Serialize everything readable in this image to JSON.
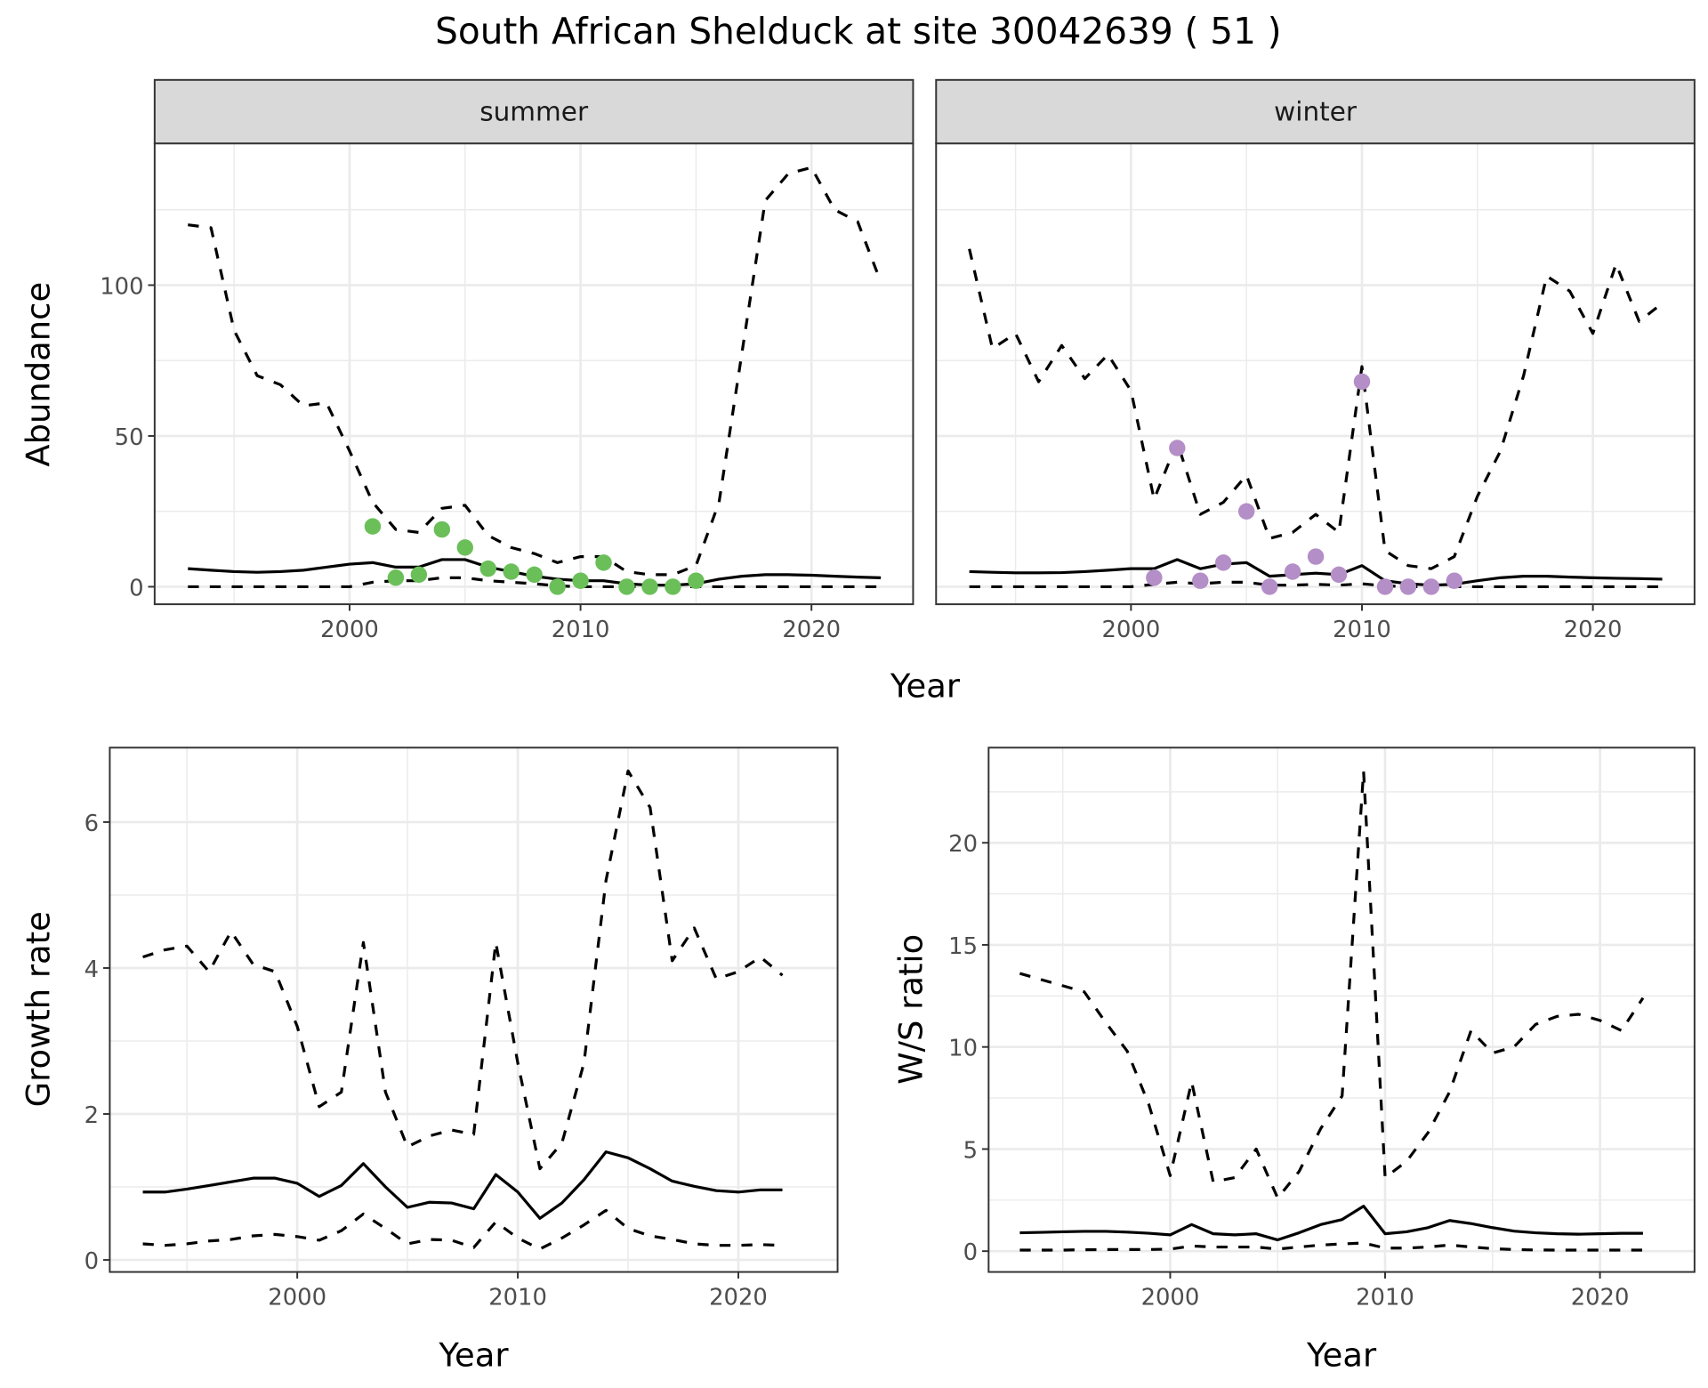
{
  "title": "South African Shelduck at site 30042639 ( 51 )",
  "colors": {
    "summer_points": "#6bbf59",
    "winter_points": "#b48ec7",
    "lines": "#000000",
    "grid": "#ebebeb",
    "strip_bg": "#d9d9d9"
  },
  "chart_data": [
    {
      "type": "line",
      "panel": "summer",
      "strip": "summer",
      "xlabel": "Year",
      "ylabel": "Abundance",
      "xlim": [
        1991.56,
        2024.4
      ],
      "ylim": [
        -5.8,
        147
      ],
      "xticks": [
        2000,
        2010,
        2020
      ],
      "yticks": [
        0,
        50,
        100
      ],
      "xminor": [
        1995,
        2005,
        2015
      ],
      "yminor": [
        25,
        75,
        125
      ],
      "x": [
        1993,
        1994,
        1995,
        1996,
        1997,
        1998,
        1999,
        2000,
        2001,
        2002,
        2003,
        2004,
        2005,
        2006,
        2007,
        2008,
        2009,
        2010,
        2011,
        2012,
        2013,
        2014,
        2015,
        2016,
        2017,
        2018,
        2019,
        2020,
        2021,
        2022,
        2023
      ],
      "series": [
        {
          "name": "upper",
          "style": "dashed",
          "values": [
            120,
            119,
            85,
            70,
            67,
            60,
            61,
            45,
            28,
            19,
            18,
            26,
            27,
            17,
            13,
            11,
            8,
            10,
            10,
            5,
            4,
            4,
            7,
            28,
            78,
            128,
            137,
            139,
            125,
            121,
            101
          ]
        },
        {
          "name": "mean",
          "style": "solid",
          "values": [
            6,
            5.5,
            5,
            4.8,
            5,
            5.5,
            6.5,
            7.5,
            8,
            6.5,
            6.5,
            9,
            9,
            6.5,
            5,
            3.5,
            2.5,
            2,
            2,
            1,
            0.5,
            0.5,
            1,
            2.5,
            3.5,
            4,
            4,
            3.8,
            3.5,
            3.2,
            3
          ]
        },
        {
          "name": "lower",
          "style": "dashed",
          "values": [
            0,
            0,
            0,
            0,
            0,
            0,
            0,
            0,
            1.5,
            2,
            2,
            3,
            3,
            2,
            1.5,
            1,
            0.3,
            0,
            0,
            0,
            0,
            0,
            0,
            0,
            0,
            0,
            0,
            0,
            0,
            0,
            0
          ]
        }
      ],
      "points": {
        "x": [
          2001,
          2002,
          2003,
          2004,
          2005,
          2006,
          2007,
          2008,
          2009,
          2010,
          2011,
          2012,
          2013,
          2014,
          2015
        ],
        "y": [
          20,
          3,
          4,
          19,
          13,
          6,
          5,
          4,
          0,
          2,
          8,
          0,
          0,
          0,
          2
        ]
      }
    },
    {
      "type": "line",
      "panel": "winter",
      "strip": "winter",
      "xlabel": "Year",
      "ylabel": "Abundance",
      "xlim": [
        1991.56,
        2024.4
      ],
      "ylim": [
        -5.8,
        147
      ],
      "xticks": [
        2000,
        2010,
        2020
      ],
      "yticks": [
        0,
        50,
        100
      ],
      "xminor": [
        1995,
        2005,
        2015
      ],
      "yminor": [
        25,
        75,
        125
      ],
      "x": [
        1993,
        1994,
        1995,
        1996,
        1997,
        1998,
        1999,
        2000,
        2001,
        2002,
        2003,
        2004,
        2005,
        2006,
        2007,
        2008,
        2009,
        2010,
        2011,
        2012,
        2013,
        2014,
        2015,
        2016,
        2017,
        2018,
        2019,
        2020,
        2021,
        2022,
        2023
      ],
      "series": [
        {
          "name": "upper",
          "style": "dashed",
          "values": [
            112,
            79,
            84,
            68,
            80,
            69,
            77,
            65,
            29,
            48,
            24,
            28,
            37,
            16,
            18,
            24,
            18,
            73,
            12,
            7,
            6,
            10,
            30,
            45,
            70,
            103,
            98,
            84,
            107,
            88,
            94
          ]
        },
        {
          "name": "mean",
          "style": "solid",
          "values": [
            5,
            4.8,
            4.6,
            4.6,
            4.7,
            5,
            5.5,
            6,
            6,
            9,
            6,
            7.5,
            8,
            3.5,
            4,
            4.5,
            4,
            7,
            2,
            1,
            0.5,
            0.8,
            2,
            3,
            3.5,
            3.5,
            3.2,
            3,
            2.8,
            2.7,
            2.5
          ]
        },
        {
          "name": "lower",
          "style": "dashed",
          "values": [
            0,
            0,
            0,
            0,
            0,
            0,
            0,
            0,
            0.8,
            1.5,
            1,
            1.5,
            1.5,
            0.5,
            0.5,
            0.8,
            0.5,
            1,
            0.3,
            0,
            0,
            0,
            0,
            0,
            0,
            0,
            0,
            0,
            0,
            0,
            0
          ]
        }
      ],
      "points": {
        "x": [
          2001,
          2002,
          2003,
          2004,
          2005,
          2006,
          2007,
          2008,
          2009,
          2010,
          2011,
          2012,
          2013,
          2014
        ],
        "y": [
          3,
          46,
          2,
          8,
          25,
          0,
          5,
          10,
          4,
          68,
          0,
          0,
          0,
          2
        ]
      }
    },
    {
      "type": "line",
      "panel": "growth",
      "xlabel": "Year",
      "ylabel": "Growth rate",
      "xlim": [
        1991.5,
        2024.5
      ],
      "ylim": [
        -0.165,
        7.02
      ],
      "xticks": [
        2000,
        2010,
        2020
      ],
      "yticks": [
        0,
        2,
        4,
        6
      ],
      "xminor": [
        1995,
        2005,
        2015
      ],
      "yminor": [
        1,
        3,
        5
      ],
      "x": [
        1993,
        1994,
        1995,
        1996,
        1997,
        1998,
        1999,
        2000,
        2001,
        2002,
        2003,
        2004,
        2005,
        2006,
        2007,
        2008,
        2009,
        2010,
        2011,
        2012,
        2013,
        2014,
        2015,
        2016,
        2017,
        2018,
        2019,
        2020,
        2021,
        2022
      ],
      "series": [
        {
          "name": "upper",
          "style": "dashed",
          "values": [
            4.15,
            4.25,
            4.3,
            3.95,
            4.5,
            4.05,
            3.95,
            3.2,
            2.1,
            2.3,
            4.35,
            2.3,
            1.55,
            1.7,
            1.78,
            1.72,
            4.35,
            2.7,
            1.25,
            1.6,
            2.7,
            5.2,
            6.7,
            6.2,
            4.1,
            4.55,
            3.85,
            3.95,
            4.15,
            3.9
          ]
        },
        {
          "name": "mean",
          "style": "solid",
          "values": [
            0.93,
            0.93,
            0.97,
            1.02,
            1.07,
            1.12,
            1.12,
            1.05,
            0.87,
            1.02,
            1.32,
            1.0,
            0.72,
            0.79,
            0.78,
            0.7,
            1.17,
            0.93,
            0.57,
            0.78,
            1.1,
            1.48,
            1.4,
            1.25,
            1.08,
            1.01,
            0.95,
            0.93,
            0.96,
            0.96
          ]
        },
        {
          "name": "lower",
          "style": "dashed",
          "values": [
            0.22,
            0.2,
            0.22,
            0.26,
            0.28,
            0.33,
            0.35,
            0.32,
            0.27,
            0.4,
            0.63,
            0.43,
            0.22,
            0.28,
            0.27,
            0.17,
            0.52,
            0.3,
            0.15,
            0.3,
            0.48,
            0.68,
            0.43,
            0.33,
            0.28,
            0.22,
            0.2,
            0.2,
            0.21,
            0.2
          ]
        }
      ]
    },
    {
      "type": "line",
      "panel": "ratio",
      "xlabel": "Year",
      "ylabel": "W/S ratio",
      "xlim": [
        1991.55,
        2024.4
      ],
      "ylim": [
        -1.02,
        24.66
      ],
      "xticks": [
        2000,
        2010,
        2020
      ],
      "yticks": [
        0,
        5,
        10,
        15,
        20
      ],
      "xminor": [
        1995,
        2005,
        2015
      ],
      "yminor": [
        2.5,
        7.5,
        12.5,
        17.5,
        22.5
      ],
      "x": [
        1993,
        1994,
        1995,
        1996,
        1997,
        1998,
        1999,
        2000,
        2001,
        2002,
        2003,
        2004,
        2005,
        2006,
        2007,
        2008,
        2009,
        2010,
        2011,
        2012,
        2013,
        2014,
        2015,
        2016,
        2017,
        2018,
        2019,
        2020,
        2021,
        2022
      ],
      "series": [
        {
          "name": "upper",
          "style": "dashed",
          "values": [
            13.6,
            13.3,
            13.0,
            12.7,
            11.2,
            9.8,
            7.2,
            3.7,
            8.3,
            3.4,
            3.6,
            5.0,
            2.6,
            3.9,
            6.0,
            7.6,
            23.5,
            3.6,
            4.4,
            5.8,
            7.8,
            10.8,
            9.7,
            10.0,
            11.1,
            11.5,
            11.6,
            11.3,
            10.8,
            12.4
          ]
        },
        {
          "name": "mean",
          "style": "solid",
          "values": [
            0.9,
            0.92,
            0.95,
            0.97,
            0.97,
            0.93,
            0.88,
            0.8,
            1.3,
            0.85,
            0.8,
            0.85,
            0.55,
            0.9,
            1.3,
            1.55,
            2.2,
            0.85,
            0.95,
            1.15,
            1.5,
            1.35,
            1.15,
            0.98,
            0.9,
            0.85,
            0.83,
            0.85,
            0.87,
            0.87
          ]
        },
        {
          "name": "lower",
          "style": "dashed",
          "values": [
            0.05,
            0.05,
            0.05,
            0.07,
            0.08,
            0.08,
            0.08,
            0.1,
            0.25,
            0.2,
            0.2,
            0.2,
            0.1,
            0.2,
            0.3,
            0.35,
            0.4,
            0.15,
            0.15,
            0.2,
            0.3,
            0.2,
            0.12,
            0.08,
            0.06,
            0.05,
            0.05,
            0.05,
            0.05,
            0.05
          ]
        }
      ]
    }
  ],
  "shared_top_xlabel": "Year"
}
